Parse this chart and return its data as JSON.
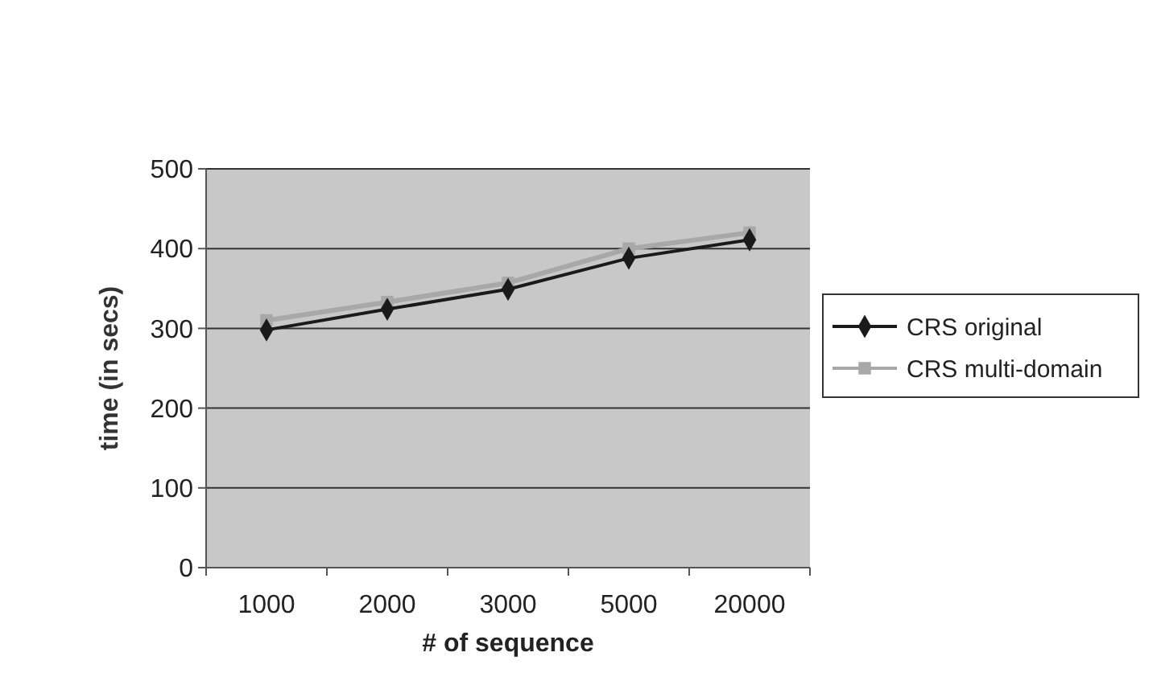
{
  "chart_data": {
    "type": "line",
    "xlabel": "# of sequence",
    "ylabel": "time (in secs)",
    "categories": [
      "1000",
      "2000",
      "3000",
      "5000",
      "20000"
    ],
    "series": [
      {
        "name": "CRS original",
        "color": "#1a1a1a",
        "marker": "diamond",
        "values": [
          298,
          324,
          349,
          388,
          411
        ]
      },
      {
        "name": "CRS multi-domain",
        "color": "#a8a8a8",
        "marker": "square",
        "values": [
          310,
          333,
          357,
          400,
          420
        ]
      }
    ],
    "ylim": [
      0,
      500
    ],
    "yticks": [
      0,
      100,
      200,
      300,
      400,
      500
    ],
    "grid": "y",
    "legend": "right"
  }
}
